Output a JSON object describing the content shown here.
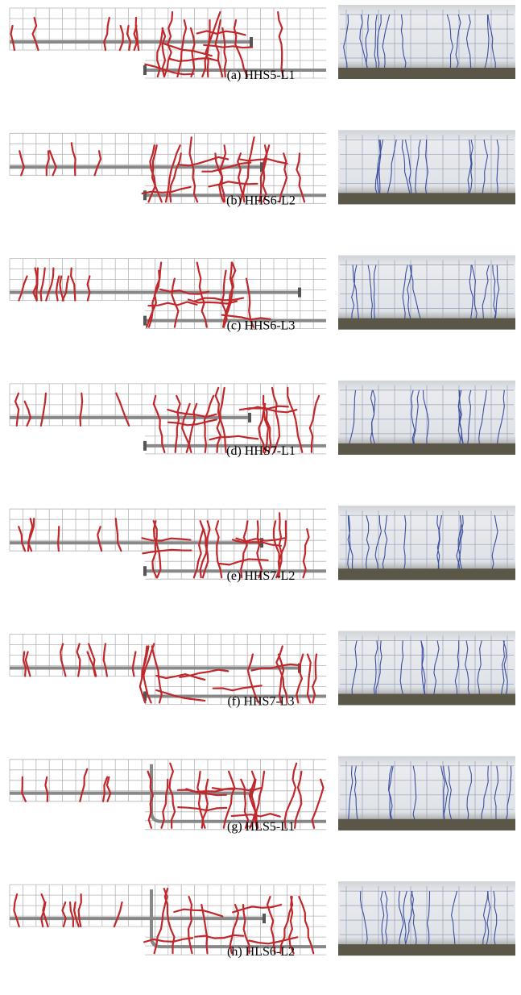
{
  "captions": [
    "(a) HHS5-L1",
    "(b) HHS6-L2",
    "(c) HHS6-L3",
    "(d) HHS7-L1",
    "(e) HHS7-L2",
    "(f) HHS7-L3",
    "(g) HLS5-L1",
    "(h) HLS6-L2"
  ]
}
